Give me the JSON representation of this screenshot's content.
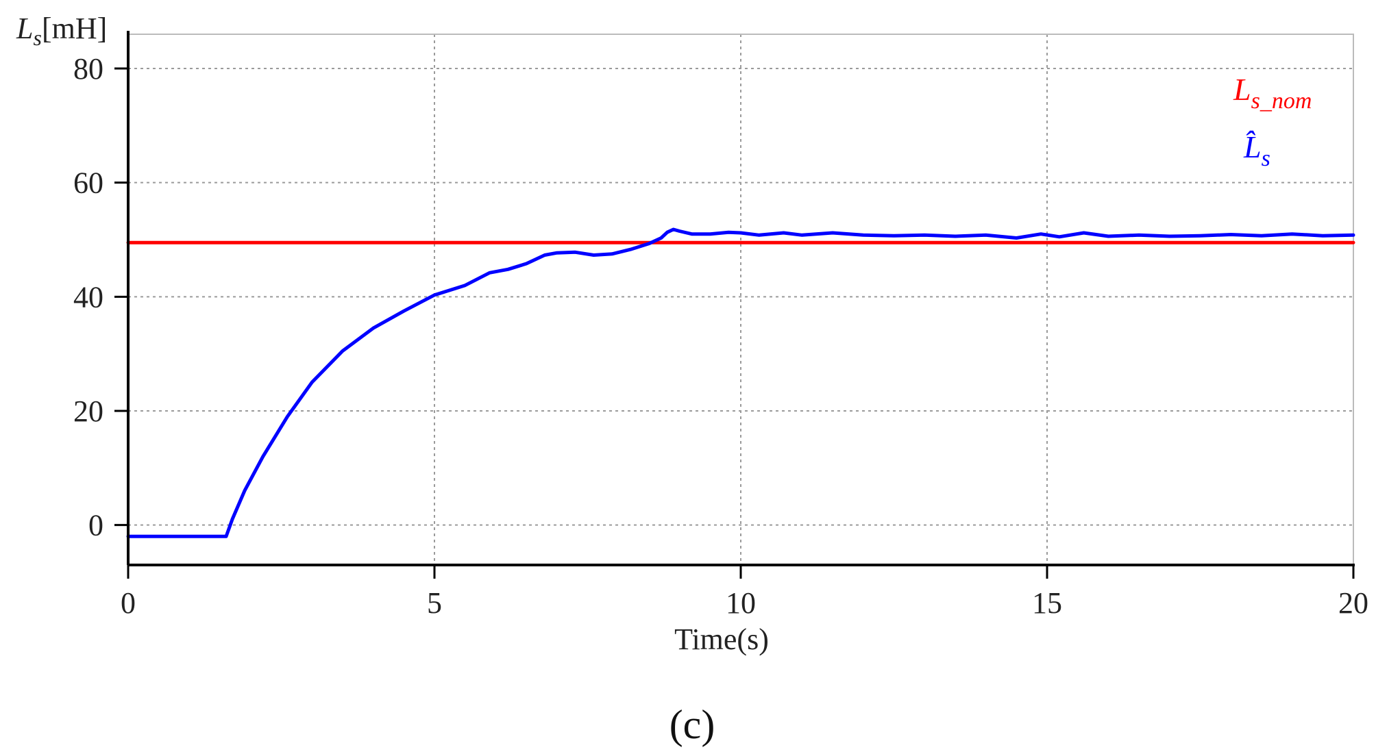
{
  "chart_data": {
    "type": "line",
    "xlabel": "Time(s)",
    "ylabel": {
      "base": "L",
      "sub": "s",
      "unit": "[mH]"
    },
    "xlim": [
      0,
      20
    ],
    "ylim": [
      -7,
      86
    ],
    "xticks": [
      0,
      5,
      10,
      15,
      20
    ],
    "yticks": [
      0,
      20,
      40,
      60,
      80
    ],
    "grid": true,
    "legend_position": "top-right",
    "series": [
      {
        "id": "ls_nom",
        "label_base": "L",
        "label_sub": "s_nom",
        "color": "#ff0000",
        "x": [
          0,
          20
        ],
        "y": [
          49.5,
          49.5
        ]
      },
      {
        "id": "ls_hat",
        "label_base": "L̂",
        "label_sub": "s",
        "color": "#0000ff",
        "x": [
          0,
          1.6,
          1.7,
          1.9,
          2.2,
          2.6,
          3.0,
          3.5,
          4.0,
          4.5,
          5.0,
          5.5,
          5.9,
          6.2,
          6.5,
          6.8,
          7.0,
          7.3,
          7.6,
          7.9,
          8.2,
          8.5,
          8.7,
          8.8,
          8.9,
          9.0,
          9.2,
          9.5,
          9.8,
          10.0,
          10.3,
          10.7,
          11.0,
          11.5,
          12.0,
          12.5,
          13.0,
          13.5,
          14.0,
          14.5,
          14.9,
          15.2,
          15.6,
          16.0,
          16.5,
          17.0,
          17.5,
          18.0,
          18.5,
          19.0,
          19.5,
          20.0
        ],
        "y": [
          -2,
          -2,
          1,
          6,
          12,
          19,
          25,
          30.5,
          34.5,
          37.5,
          40.3,
          42,
          44.2,
          44.8,
          45.8,
          47.3,
          47.7,
          47.8,
          47.3,
          47.5,
          48.3,
          49.3,
          50.3,
          51.3,
          51.8,
          51.5,
          51,
          51,
          51.3,
          51.2,
          50.8,
          51.2,
          50.8,
          51.2,
          50.8,
          50.7,
          50.8,
          50.6,
          50.8,
          50.3,
          51.0,
          50.5,
          51.2,
          50.6,
          50.8,
          50.6,
          50.7,
          50.9,
          50.7,
          51.0,
          50.7,
          50.8
        ]
      }
    ],
    "caption": "(c)"
  }
}
